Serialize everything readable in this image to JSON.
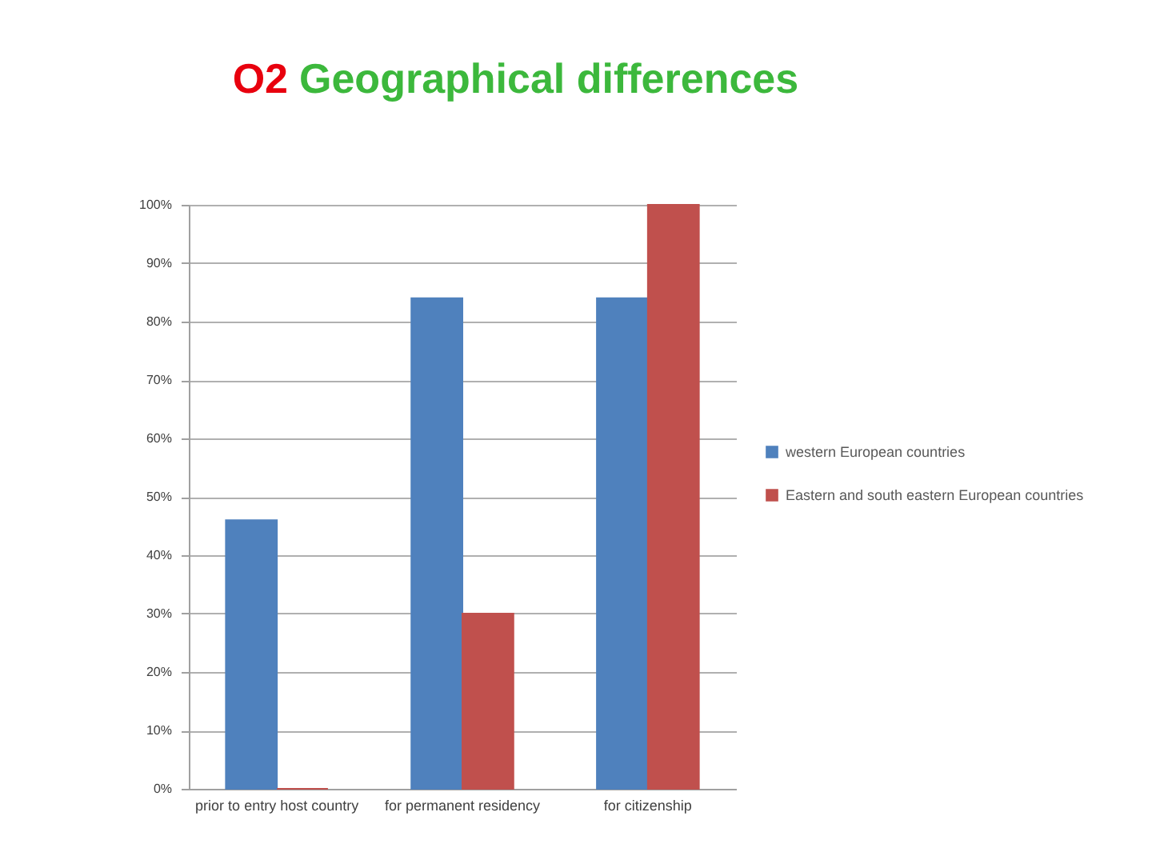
{
  "chart_data": {
    "type": "bar",
    "title": "O2 Geographical differences",
    "categories": [
      "prior to entry host country",
      "for permanent residency",
      "for citizenship"
    ],
    "series": [
      {
        "name": "western European countries",
        "color": "#4f81bd",
        "values": [
          46,
          84,
          84
        ]
      },
      {
        "name": "Eastern and south eastern European countries",
        "color": "#c0504d",
        "values": [
          0,
          30,
          100
        ]
      }
    ],
    "ylim": [
      0,
      100
    ],
    "yticks": [
      {
        "value": 0,
        "label": "0%"
      },
      {
        "value": 10,
        "label": "10%"
      },
      {
        "value": 20,
        "label": "20%"
      },
      {
        "value": 30,
        "label": "30%"
      },
      {
        "value": 40,
        "label": "40%"
      },
      {
        "value": 50,
        "label": "50%"
      },
      {
        "value": 60,
        "label": "60%"
      },
      {
        "value": 70,
        "label": "70%"
      },
      {
        "value": 80,
        "label": "80%"
      },
      {
        "value": 90,
        "label": "90%"
      },
      {
        "value": 100,
        "label": "100%"
      }
    ],
    "grid": "y",
    "legend": "right"
  }
}
